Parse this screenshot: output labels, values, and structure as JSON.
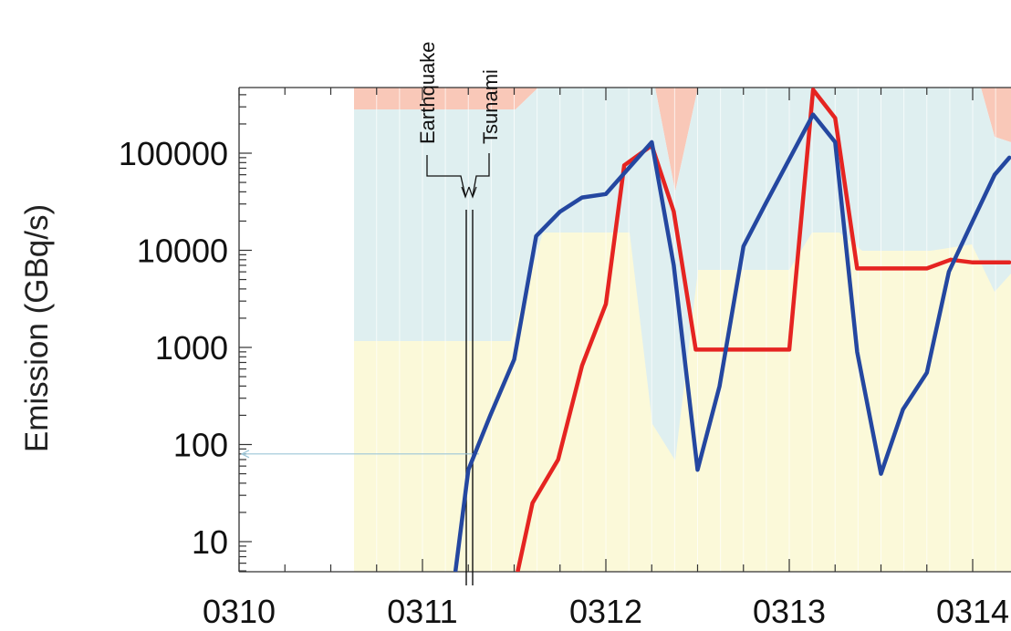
{
  "chart_data": {
    "type": "line",
    "ylabel": "Emission (GBq/s)",
    "y_scale": "log",
    "ylim": [
      5,
      500000
    ],
    "xlim": [
      0,
      4.2
    ],
    "x_ticks": [
      "0310",
      "0311",
      "0312",
      "0313",
      "0314"
    ],
    "y_ticks": [
      "10",
      "100",
      "1000",
      "10000",
      "100000"
    ],
    "grid": "vertical minor lines",
    "annotations": [
      {
        "text": "Earthquake",
        "x": 1.23
      },
      {
        "text": "Tsunami",
        "x": 1.27
      }
    ],
    "series": [
      {
        "color": "#e52421",
        "x": [
          1.52,
          1.6,
          1.74,
          1.87,
          2.0,
          2.1,
          2.25,
          2.37,
          2.49,
          2.62,
          2.75,
          3.0,
          3.13,
          3.25,
          3.37,
          3.5,
          3.75,
          3.88,
          4.0,
          4.2
        ],
        "y": [
          5,
          25,
          70,
          650,
          2800,
          75000,
          120000,
          25000,
          950,
          950,
          950,
          950,
          450000,
          230000,
          6500,
          6500,
          6500,
          8000,
          7500,
          7500
        ]
      },
      {
        "color": "#2447a0",
        "x": [
          1.18,
          1.25,
          1.37,
          1.5,
          1.62,
          1.75,
          1.87,
          2.0,
          2.25,
          2.37,
          2.5,
          2.62,
          2.75,
          2.87,
          3.13,
          3.25,
          3.37,
          3.5,
          3.62,
          3.75,
          3.87,
          4.0,
          4.12,
          4.2
        ],
        "y": [
          5,
          55,
          200,
          750,
          14000,
          25000,
          35000,
          38000,
          130000,
          7000,
          55,
          400,
          11000,
          30000,
          250000,
          130000,
          900,
          50,
          230,
          550,
          6000,
          20000,
          60000,
          90000
        ]
      }
    ],
    "bands": [
      {
        "name": "salmon",
        "color": "#f9c8b8"
      },
      {
        "name": "cyan",
        "color": "#dfeff0"
      },
      {
        "name": "yellow",
        "color": "#fbf9d9"
      }
    ]
  }
}
